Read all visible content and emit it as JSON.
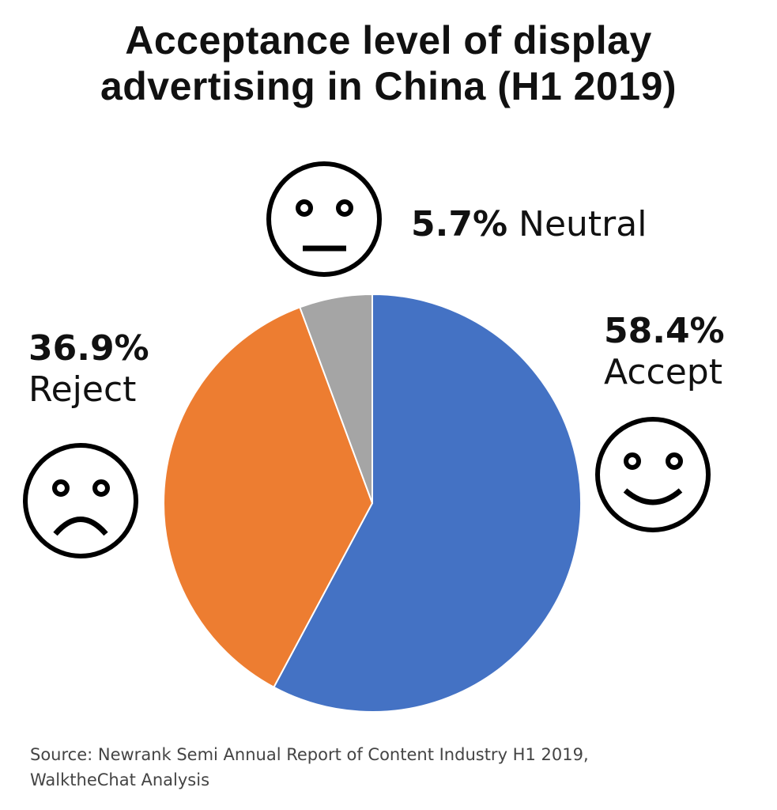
{
  "title_line1": "Acceptance level of display",
  "title_line2": "advertising in China (H1 2019)",
  "chart_data": {
    "type": "pie",
    "title": "Acceptance level of display advertising in China (H1 2019)",
    "slices": [
      {
        "name": "Accept",
        "value": 58.4,
        "value_label": "58.4%",
        "color": "#4472C4",
        "icon": "smiling-face-icon"
      },
      {
        "name": "Reject",
        "value": 36.9,
        "value_label": "36.9%",
        "color": "#ED7D31",
        "icon": "frowning-face-icon"
      },
      {
        "name": "Neutral",
        "value": 5.7,
        "value_label": "5.7%",
        "color": "#A5A5A5",
        "icon": "neutral-face-icon"
      }
    ],
    "start": "12 o'clock",
    "direction": "clockwise"
  },
  "source_line1": "Source: Newrank Semi Annual Report of Content Industry H1 2019,",
  "source_line2": "WalktheChat Analysis"
}
